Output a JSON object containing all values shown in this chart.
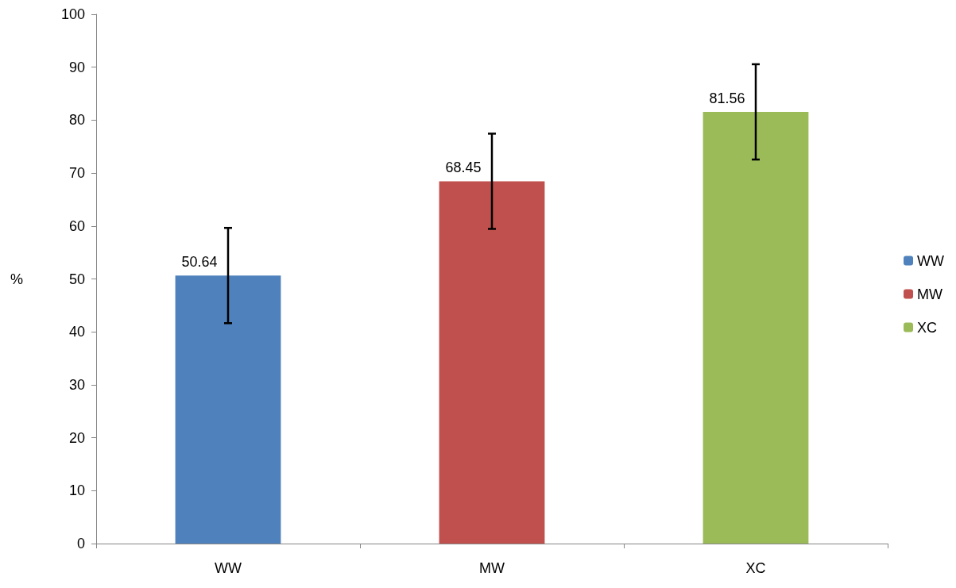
{
  "chart_data": {
    "type": "bar",
    "ylabel": "%",
    "categories": [
      "WW",
      "MW",
      "XC"
    ],
    "series": [
      {
        "name": "WW",
        "color": "#4f81bd",
        "values": [
          50.64,
          null,
          null
        ],
        "errors": [
          9,
          null,
          null
        ]
      },
      {
        "name": "MW",
        "color": "#c0504d",
        "values": [
          null,
          68.45,
          null
        ],
        "errors": [
          null,
          9,
          null
        ]
      },
      {
        "name": "XC",
        "color": "#9bbb59",
        "values": [
          null,
          null,
          81.56
        ],
        "errors": [
          null,
          null,
          9
        ]
      }
    ],
    "stacked": true,
    "data_labels": true,
    "ylim": [
      0,
      100
    ],
    "yticks": [
      0,
      10,
      20,
      30,
      40,
      50,
      60,
      70,
      80,
      90,
      100
    ],
    "legend": "right",
    "grid": false
  }
}
